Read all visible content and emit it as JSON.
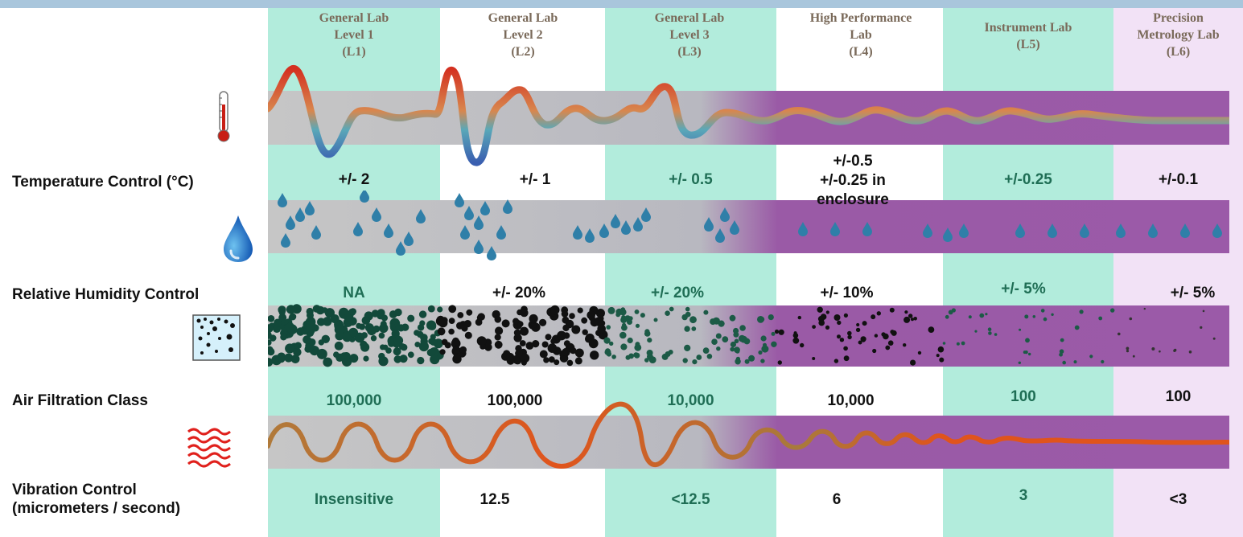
{
  "columns": [
    {
      "id": "L1",
      "name_lines": [
        "General Lab",
        "Level 1",
        "(L1)"
      ]
    },
    {
      "id": "L2",
      "name_lines": [
        "General Lab",
        "Level 2",
        "(L2)"
      ]
    },
    {
      "id": "L3",
      "name_lines": [
        "General Lab",
        "Level 3",
        "(L3)"
      ]
    },
    {
      "id": "L4",
      "name_lines": [
        "High Performance",
        "Lab",
        "(L4)"
      ]
    },
    {
      "id": "L5",
      "name_lines": [
        "Instrument Lab",
        "(L5)"
      ]
    },
    {
      "id": "L6",
      "name_lines": [
        "Precision",
        "Metrology Lab",
        "(L6)"
      ]
    }
  ],
  "rows": {
    "temperature": {
      "label": "Temperature Control (°C)",
      "icon": "thermometer-icon",
      "values": [
        "+/- 2",
        "+/- 1",
        "+/- 0.5",
        "+/-0.5",
        "+/-0.25",
        "+/-0.1"
      ],
      "l4_extra_lines": [
        "+/-0.25 in",
        "enclosure"
      ]
    },
    "humidity": {
      "label": "Relative Humidity Control",
      "icon": "water-drop-icon",
      "values": [
        "NA",
        "+/- 20%",
        "+/- 20%",
        "+/- 10%",
        "+/- 5%",
        "+/- 5%"
      ]
    },
    "air": {
      "label": "Air Filtration Class",
      "icon": "particles-icon",
      "values": [
        "100,000",
        "100,000",
        "10,000",
        "10,000",
        "100",
        "100"
      ]
    },
    "vibration": {
      "label_lines": [
        "Vibration Control",
        "(micrometers / second)"
      ],
      "icon": "vibration-waves-icon",
      "values": [
        "Insensitive",
        "12.5",
        "<12.5",
        "6",
        "3",
        "<3"
      ]
    }
  },
  "colors": {
    "header_bar": "#a9c6dc",
    "green_band": "#b2ecdc",
    "gray_strip": "#c8c8c8",
    "purple_strip": "#9b5aa8",
    "value_green": "#1f6e55"
  }
}
